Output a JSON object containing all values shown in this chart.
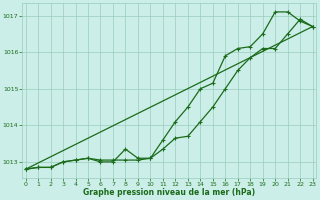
{
  "x_hours": [
    0,
    1,
    2,
    3,
    4,
    5,
    6,
    7,
    8,
    9,
    10,
    11,
    12,
    13,
    14,
    15,
    16,
    17,
    18,
    19,
    20,
    21,
    22,
    23
  ],
  "line1": [
    1012.8,
    1012.85,
    1012.85,
    1013.0,
    1013.05,
    1013.1,
    1013.05,
    1013.05,
    1013.05,
    1013.05,
    1013.1,
    1013.35,
    1013.65,
    1013.7,
    1014.1,
    1014.5,
    1015.0,
    1015.5,
    1015.85,
    1016.1,
    1016.1,
    1016.5,
    1016.9,
    1016.7
  ],
  "line2": [
    1012.8,
    1012.85,
    1012.85,
    1013.0,
    1013.05,
    1013.1,
    1013.0,
    1013.0,
    1013.35,
    1013.1,
    1013.1,
    1013.6,
    1014.1,
    1014.5,
    1015.0,
    1015.15,
    1015.9,
    1016.1,
    1016.15,
    1016.5,
    1017.1,
    1017.1,
    1016.85,
    1016.7
  ],
  "line3_x": [
    0,
    23
  ],
  "line3_y": [
    1012.8,
    1016.7
  ],
  "ylim": [
    1012.55,
    1017.35
  ],
  "yticks": [
    1013,
    1014,
    1015,
    1016,
    1017
  ],
  "xlim": [
    -0.3,
    23.3
  ],
  "xticks": [
    0,
    1,
    2,
    3,
    4,
    5,
    6,
    7,
    8,
    9,
    10,
    11,
    12,
    13,
    14,
    15,
    16,
    17,
    18,
    19,
    20,
    21,
    22,
    23
  ],
  "line_color": "#1a6b1a",
  "bg_color": "#cceee8",
  "grid_color": "#99ccbb",
  "xlabel": "Graphe pression niveau de la mer (hPa)",
  "marker": "+",
  "marker_size": 3.5,
  "linewidth": 0.9
}
